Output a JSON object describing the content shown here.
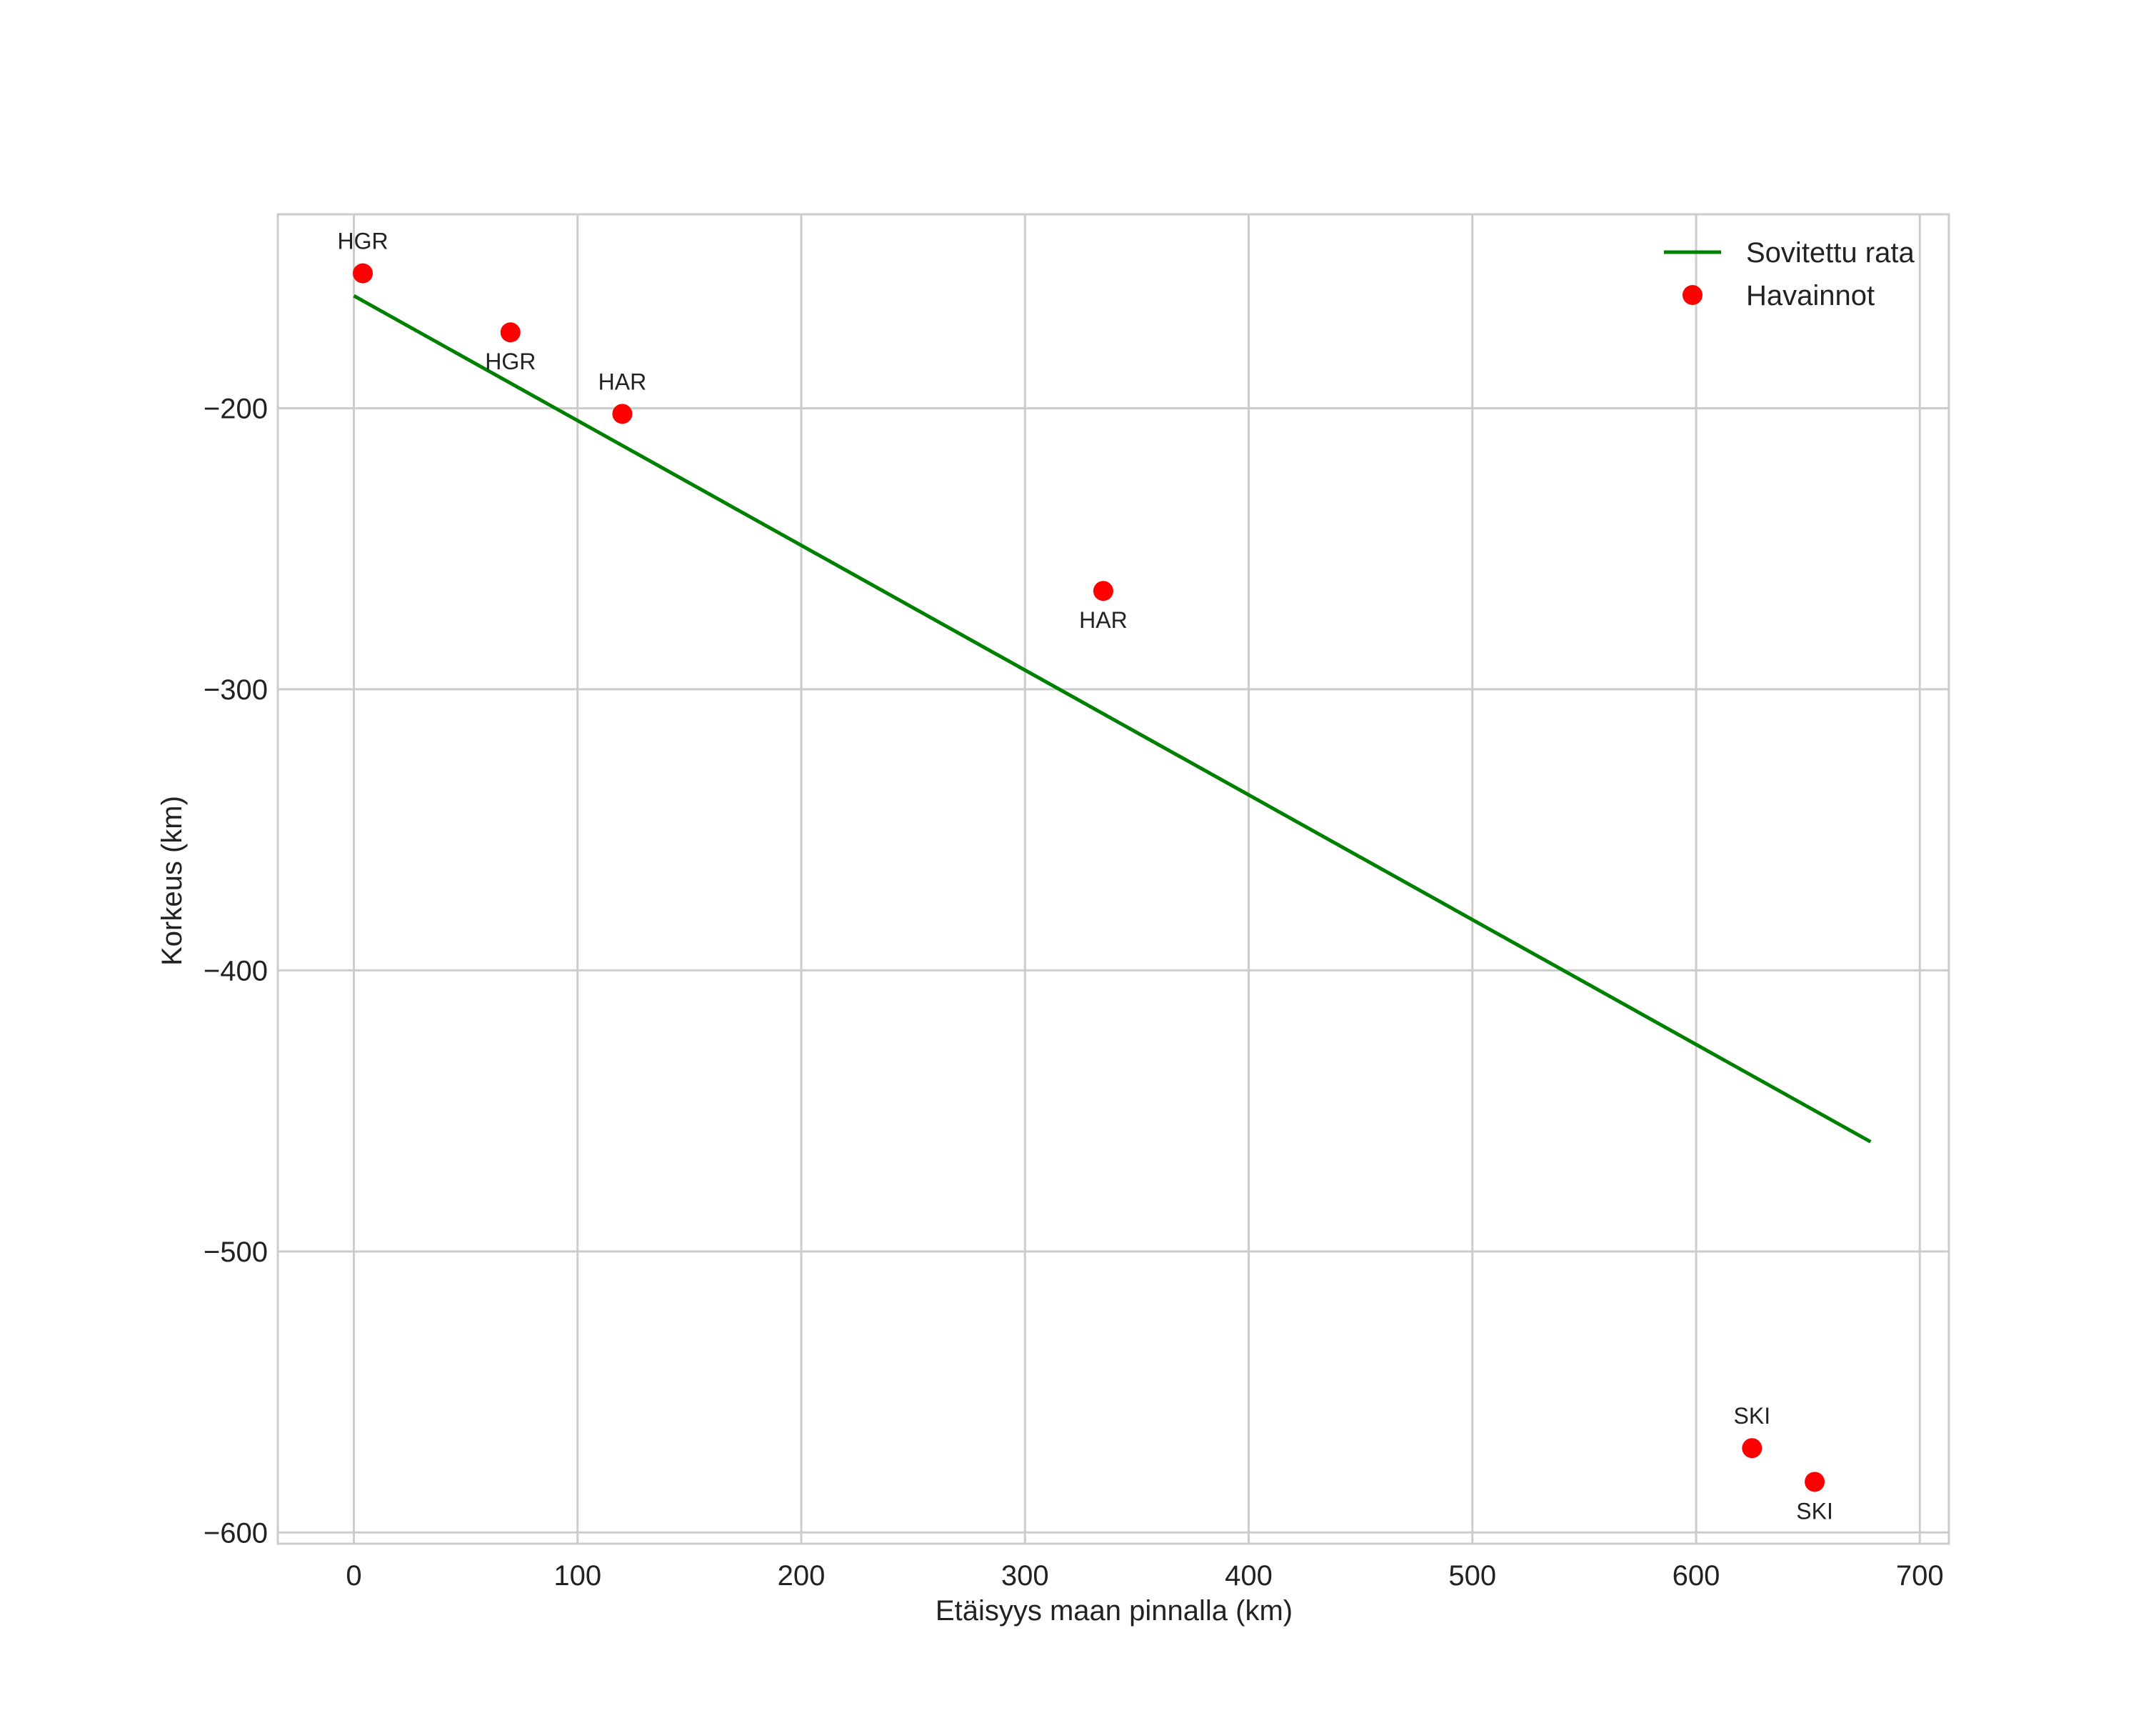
{
  "chart_data": {
    "type": "line+scatter",
    "title": "",
    "xlabel": "Etäisyys maan pinnalla (km)",
    "ylabel": "Korkeus (km)",
    "xlim": [
      -34,
      713
    ],
    "ylim": [
      -604,
      -131
    ],
    "xticks": [
      0,
      100,
      200,
      300,
      400,
      500,
      600,
      700
    ],
    "xtick_labels": [
      "0",
      "100",
      "200",
      "300",
      "400",
      "500",
      "600",
      "700"
    ],
    "yticks": [
      -200,
      -300,
      -400,
      -500,
      -600
    ],
    "ytick_labels": [
      "−200",
      "−300",
      "−400",
      "−500",
      "−600"
    ],
    "grid": true,
    "legend_position": "top-right",
    "series": [
      {
        "name": "Sovitettu rata",
        "type": "line",
        "color": "#008000",
        "x": [
          0,
          678
        ],
        "y": [
          -160,
          -461
        ]
      },
      {
        "name": "Havainnot",
        "type": "scatter",
        "color": "#ff0000",
        "points": [
          {
            "x": 4,
            "y": -152,
            "label": "HGR",
            "label_pos": "above"
          },
          {
            "x": 70,
            "y": -173,
            "label": "HGR",
            "label_pos": "below"
          },
          {
            "x": 120,
            "y": -202,
            "label": "HAR",
            "label_pos": "above"
          },
          {
            "x": 335,
            "y": -265,
            "label": "HAR",
            "label_pos": "below"
          },
          {
            "x": 625,
            "y": -570,
            "label": "SKI",
            "label_pos": "above"
          },
          {
            "x": 653,
            "y": -582,
            "label": "SKI",
            "label_pos": "below"
          }
        ]
      }
    ]
  }
}
